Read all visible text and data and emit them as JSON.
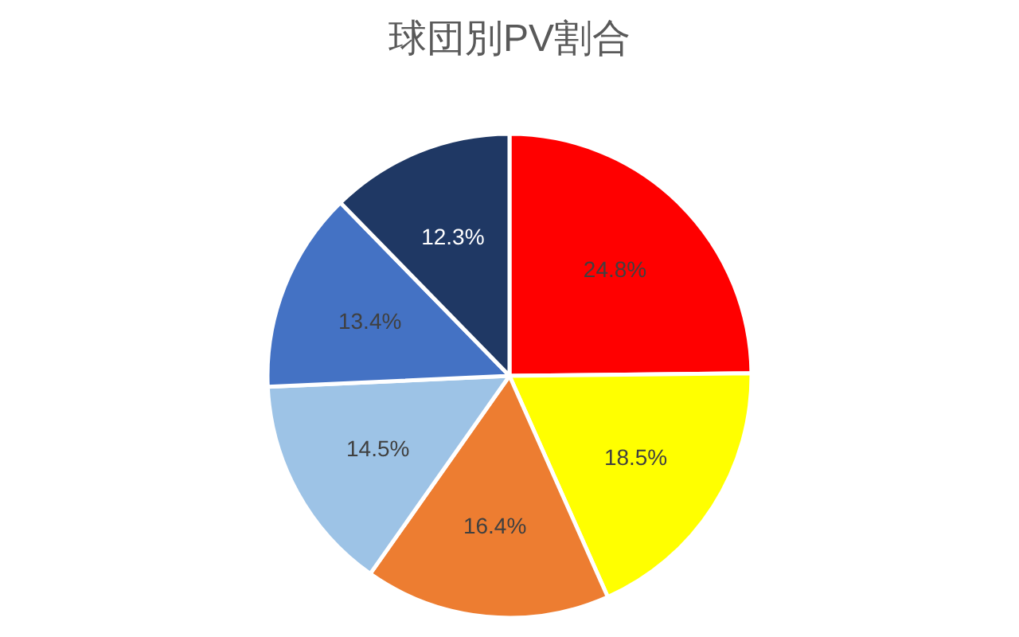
{
  "chart_data": {
    "type": "pie",
    "title": "球団別PV割合",
    "categories": [
      null,
      null,
      null,
      null,
      null,
      null
    ],
    "values": [
      24.8,
      18.5,
      16.4,
      14.5,
      13.4,
      12.3
    ],
    "colors": [
      "#ff0000",
      "#ffff00",
      "#ed7d31",
      "#9dc3e6",
      "#4472c4",
      "#1f3864"
    ],
    "value_labels": [
      "24.8%",
      "18.5%",
      "16.4%",
      "14.5%",
      "13.4%",
      "12.3%"
    ]
  }
}
